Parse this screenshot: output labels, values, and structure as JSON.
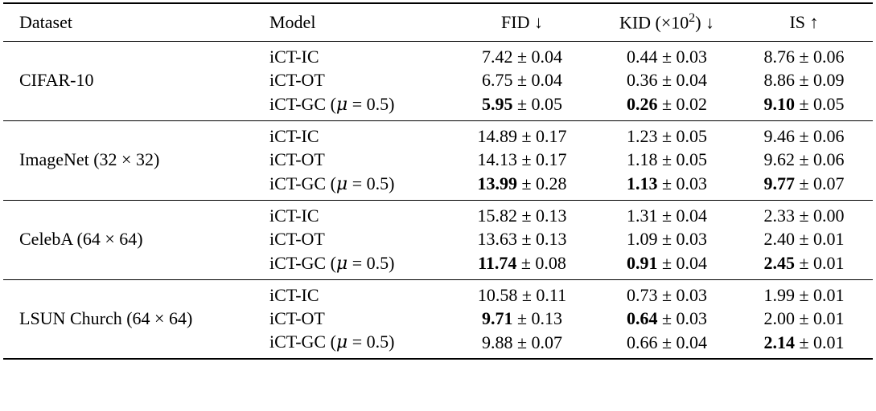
{
  "table": {
    "columns": [
      {
        "id": "dataset",
        "label": "Dataset"
      },
      {
        "id": "model",
        "label": "Model"
      },
      {
        "id": "fid",
        "label": "FID ↓"
      },
      {
        "id": "kid",
        "label": "KID (×10²) ↓"
      },
      {
        "id": "is",
        "label": "IS ↑"
      }
    ],
    "plus_minus": "±",
    "colors": {
      "text": "#000000",
      "background": "#ffffff",
      "rule": "#000000"
    },
    "sections": [
      {
        "dataset": "CIFAR-10",
        "rows": [
          {
            "model": "iCT-IC",
            "metrics": [
              {
                "mean": "7.42",
                "std": "0.04",
                "bold": false
              },
              {
                "mean": "0.44",
                "std": "0.03",
                "bold": false
              },
              {
                "mean": "8.76",
                "std": "0.06",
                "bold": false
              }
            ]
          },
          {
            "model": "iCT-OT",
            "metrics": [
              {
                "mean": "6.75",
                "std": "0.04",
                "bold": false
              },
              {
                "mean": "0.36",
                "std": "0.04",
                "bold": false
              },
              {
                "mean": "8.86",
                "std": "0.09",
                "bold": false
              }
            ]
          },
          {
            "model": "iCT-GC (μ = 0.5)",
            "metrics": [
              {
                "mean": "5.95",
                "std": "0.05",
                "bold": true
              },
              {
                "mean": "0.26",
                "std": "0.02",
                "bold": true
              },
              {
                "mean": "9.10",
                "std": "0.05",
                "bold": true
              }
            ]
          }
        ]
      },
      {
        "dataset": "ImageNet (32 × 32)",
        "rows": [
          {
            "model": "iCT-IC",
            "metrics": [
              {
                "mean": "14.89",
                "std": "0.17",
                "bold": false
              },
              {
                "mean": "1.23",
                "std": "0.05",
                "bold": false
              },
              {
                "mean": "9.46",
                "std": "0.06",
                "bold": false
              }
            ]
          },
          {
            "model": "iCT-OT",
            "metrics": [
              {
                "mean": "14.13",
                "std": "0.17",
                "bold": false
              },
              {
                "mean": "1.18",
                "std": "0.05",
                "bold": false
              },
              {
                "mean": "9.62",
                "std": "0.06",
                "bold": false
              }
            ]
          },
          {
            "model": "iCT-GC (μ = 0.5)",
            "metrics": [
              {
                "mean": "13.99",
                "std": "0.28",
                "bold": true
              },
              {
                "mean": "1.13",
                "std": "0.03",
                "bold": true
              },
              {
                "mean": "9.77",
                "std": "0.07",
                "bold": true
              }
            ]
          }
        ]
      },
      {
        "dataset": "CelebA (64 × 64)",
        "rows": [
          {
            "model": "iCT-IC",
            "metrics": [
              {
                "mean": "15.82",
                "std": "0.13",
                "bold": false
              },
              {
                "mean": "1.31",
                "std": "0.04",
                "bold": false
              },
              {
                "mean": "2.33",
                "std": "0.00",
                "bold": false
              }
            ]
          },
          {
            "model": "iCT-OT",
            "metrics": [
              {
                "mean": "13.63",
                "std": "0.13",
                "bold": false
              },
              {
                "mean": "1.09",
                "std": "0.03",
                "bold": false
              },
              {
                "mean": "2.40",
                "std": "0.01",
                "bold": false
              }
            ]
          },
          {
            "model": "iCT-GC (μ = 0.5)",
            "metrics": [
              {
                "mean": "11.74",
                "std": "0.08",
                "bold": true
              },
              {
                "mean": "0.91",
                "std": "0.04",
                "bold": true
              },
              {
                "mean": "2.45",
                "std": "0.01",
                "bold": true
              }
            ]
          }
        ]
      },
      {
        "dataset": "LSUN Church (64 × 64)",
        "rows": [
          {
            "model": "iCT-IC",
            "metrics": [
              {
                "mean": "10.58",
                "std": "0.11",
                "bold": false
              },
              {
                "mean": "0.73",
                "std": "0.03",
                "bold": false
              },
              {
                "mean": "1.99",
                "std": "0.01",
                "bold": false
              }
            ]
          },
          {
            "model": "iCT-OT",
            "metrics": [
              {
                "mean": "9.71",
                "std": "0.13",
                "bold": true
              },
              {
                "mean": "0.64",
                "std": "0.03",
                "bold": true
              },
              {
                "mean": "2.00",
                "std": "0.01",
                "bold": false
              }
            ]
          },
          {
            "model": "iCT-GC (μ = 0.5)",
            "metrics": [
              {
                "mean": "9.88",
                "std": "0.07",
                "bold": false
              },
              {
                "mean": "0.66",
                "std": "0.04",
                "bold": false
              },
              {
                "mean": "2.14",
                "std": "0.01",
                "bold": true
              }
            ]
          }
        ]
      }
    ]
  }
}
